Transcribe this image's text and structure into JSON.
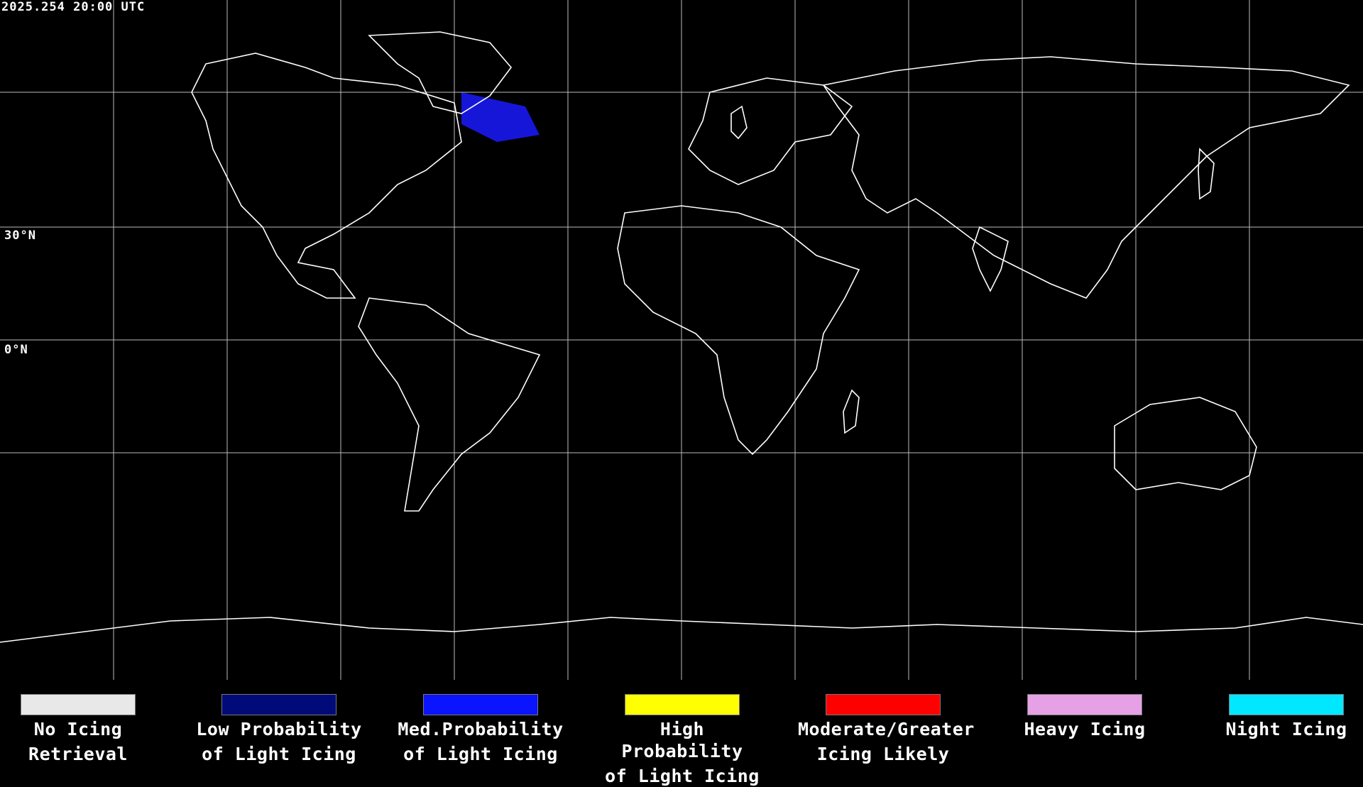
{
  "header": {
    "timestamp": "2025.254 20:00 UTC"
  },
  "map": {
    "latitude_labels": {
      "lat_30n": "30°N",
      "lat_0n": "0°N"
    },
    "grid_color": "#ffffff",
    "coastline_color": "#ffffff",
    "background_color": "#000000"
  },
  "legend": {
    "items": [
      {
        "line1": "No Icing",
        "line2": "Retrieval",
        "color": "#e8e8e8"
      },
      {
        "line1": "Low Probability",
        "line2": "of Light Icing",
        "color": "#000a78"
      },
      {
        "line1": "Med.Probability",
        "line2": "of Light Icing",
        "color": "#0a14ff"
      },
      {
        "line1": "High Probability",
        "line2": "of Light Icing",
        "color": "#ffff00"
      },
      {
        "line1": "Moderate/Greater",
        "line2": "Icing Likely",
        "color": "#ff0000"
      },
      {
        "line1": "Heavy Icing",
        "line2": "",
        "color": "#e6a0e6"
      },
      {
        "line1": "Night Icing",
        "line2": "",
        "color": "#00e8ff"
      }
    ]
  }
}
